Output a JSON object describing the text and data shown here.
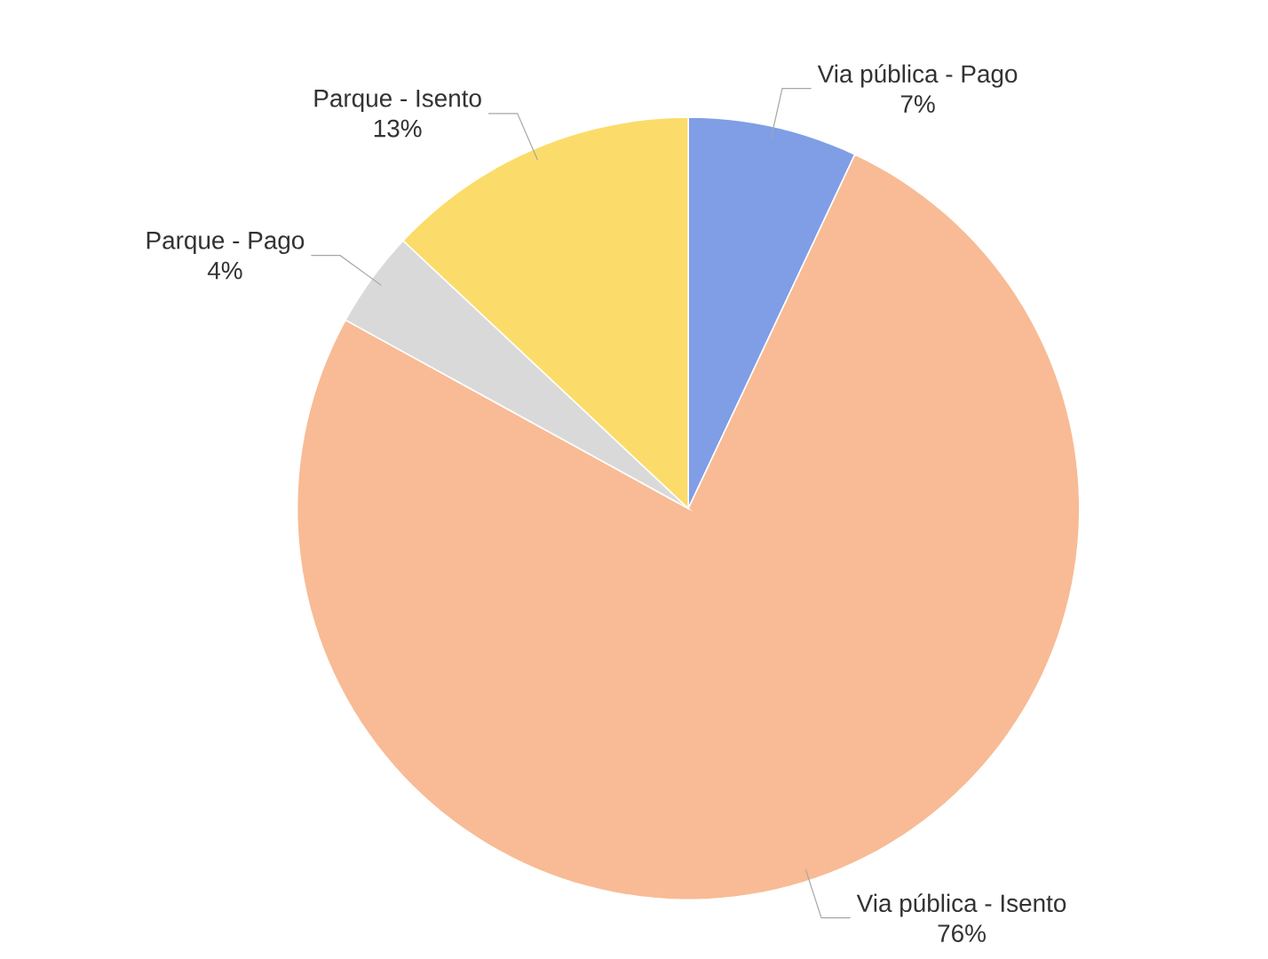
{
  "chart_data": {
    "type": "pie",
    "categories": [
      "Via pública - Pago",
      "Via pública - Isento",
      "Parque - Pago",
      "Parque - Isento"
    ],
    "values": [
      7,
      76,
      4,
      13
    ],
    "value_labels": [
      "7%",
      "76%",
      "4%",
      "13%"
    ],
    "colors": [
      "#7f9ee6",
      "#f8bb95",
      "#d9d9d9",
      "#fbdc6a"
    ]
  }
}
